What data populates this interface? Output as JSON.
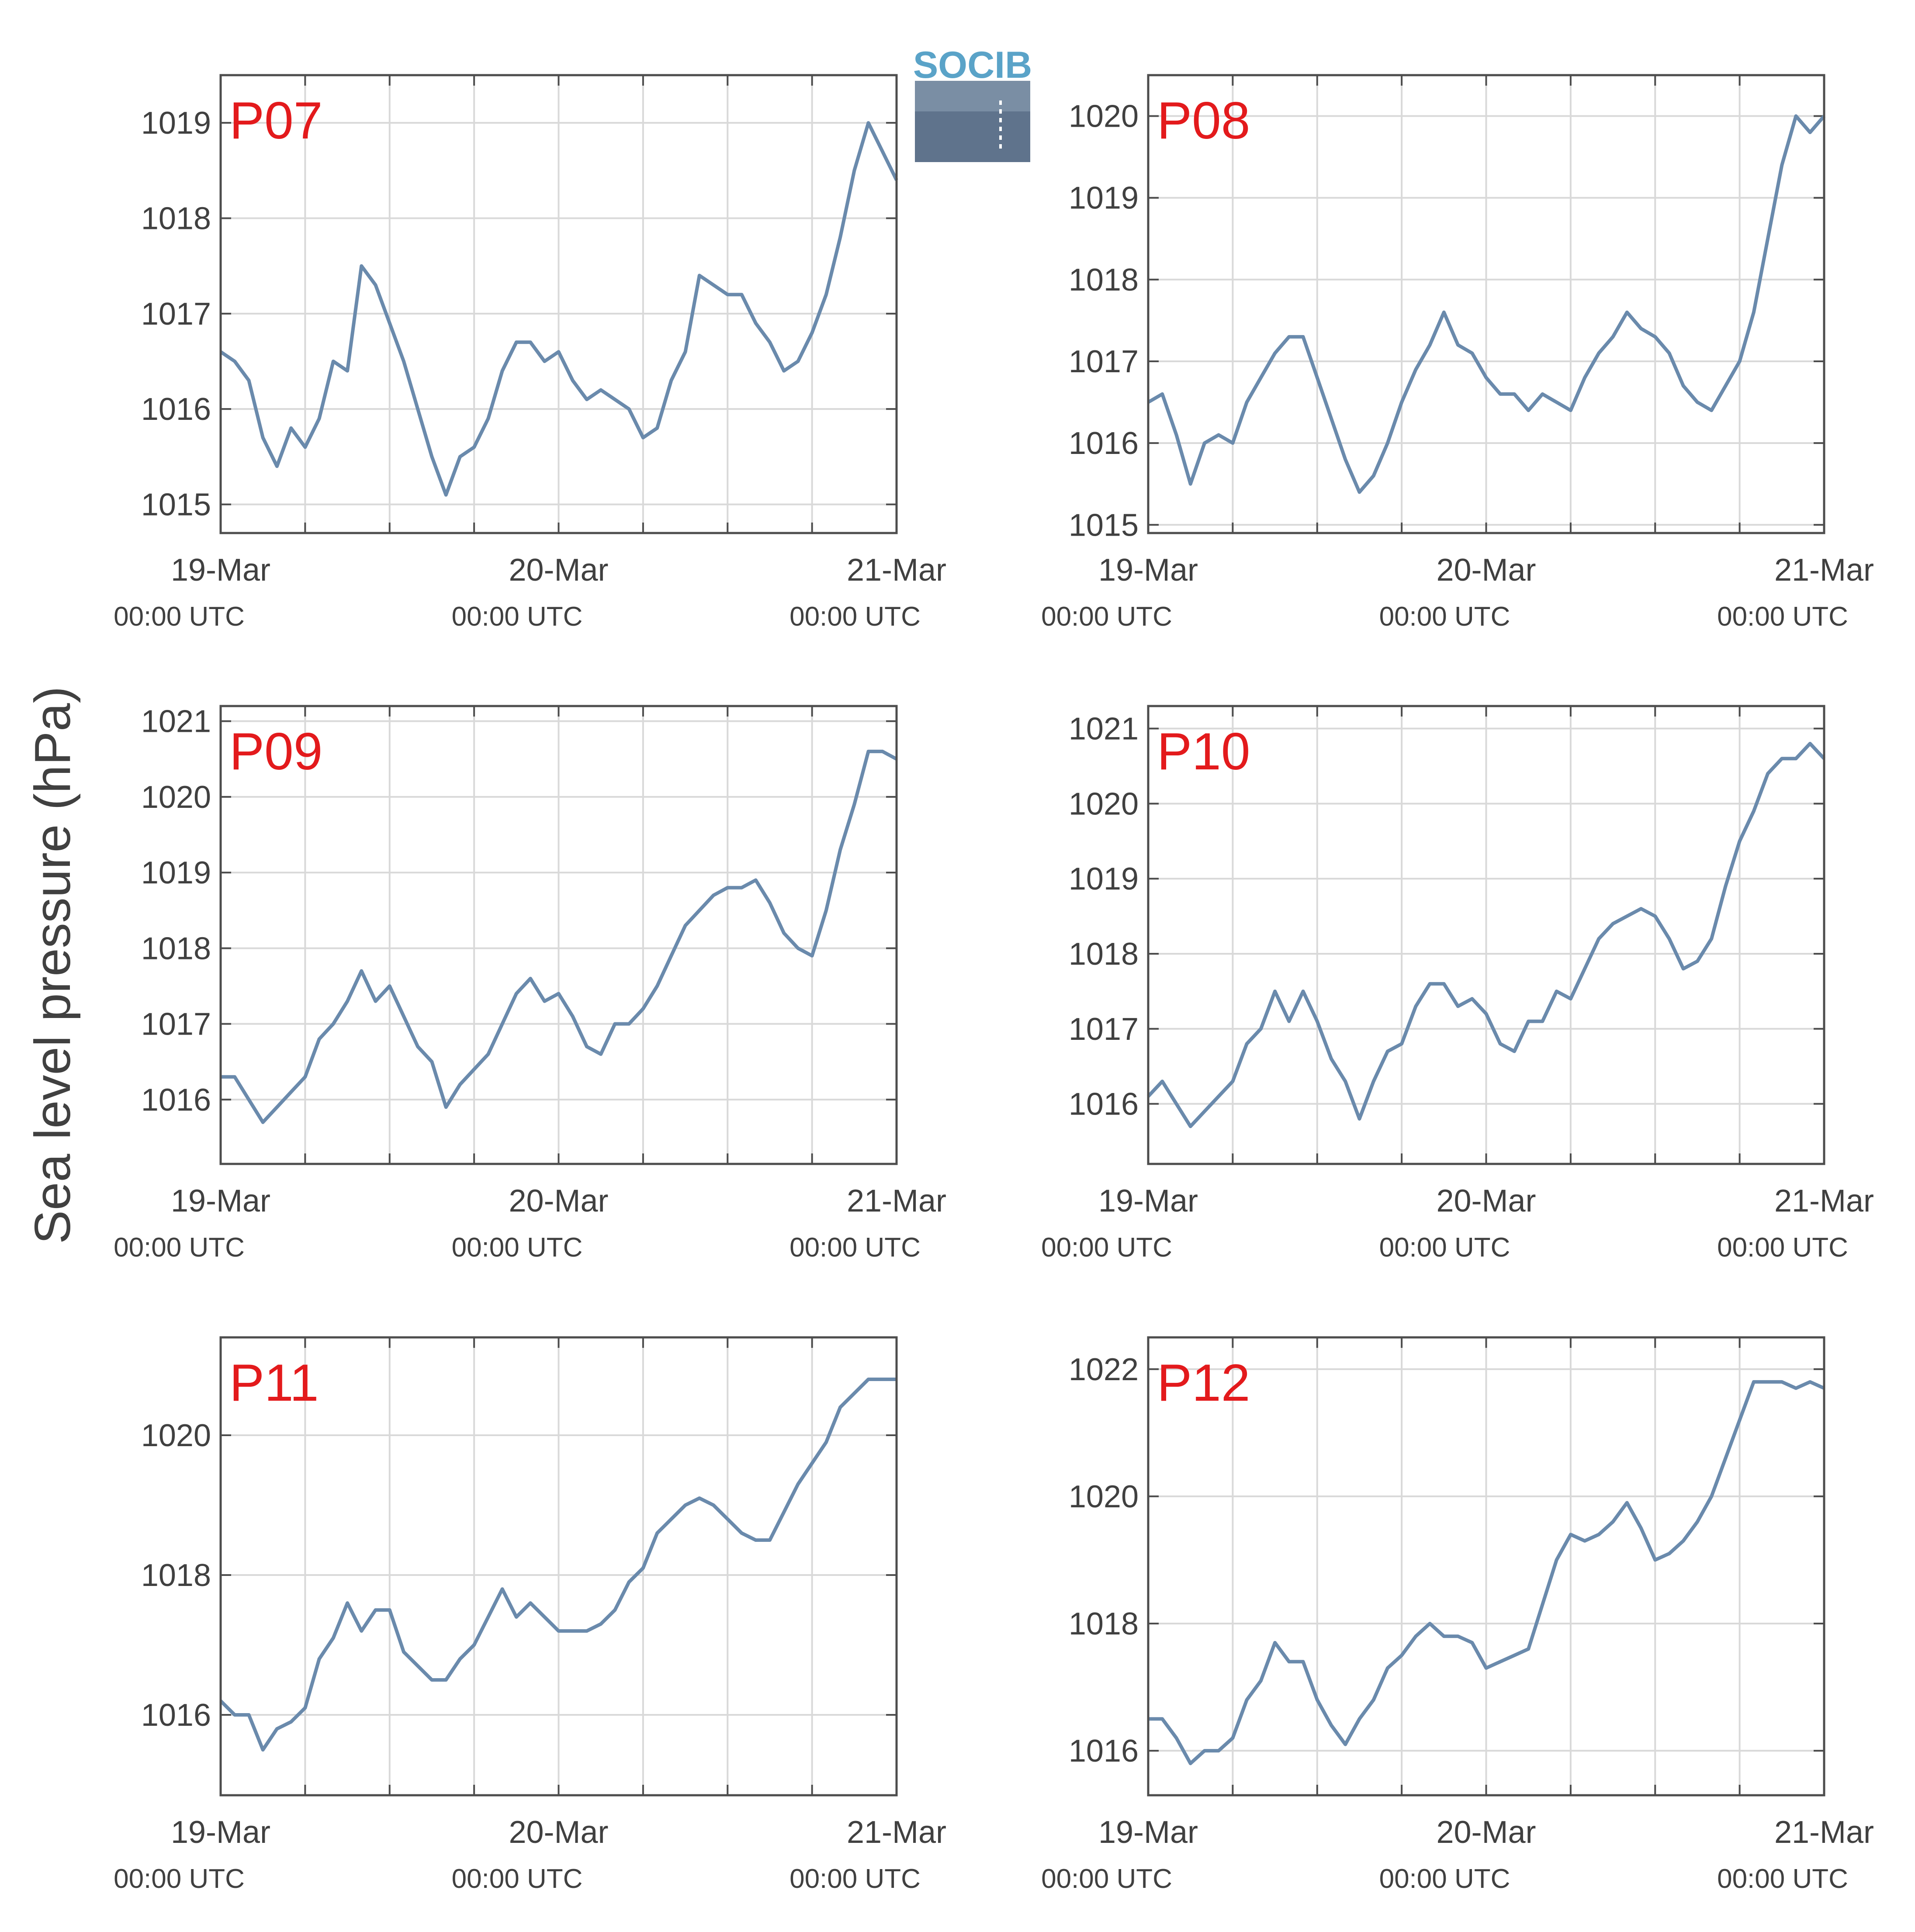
{
  "figure": {
    "ylabel": "Sea level pressure (hPa)",
    "logo_text": "SOCIB",
    "colors": {
      "line": "#6a8aac",
      "panel_label": "#e31a1c",
      "grid": "#d9d9d9",
      "axis": "#4d4d4d",
      "text": "#404040"
    }
  },
  "chart_data": [
    {
      "type": "line",
      "title": "P07",
      "xlabel": "",
      "ylabel": "Sea level pressure (hPa)",
      "x_ticks": [
        {
          "date": "19-Mar",
          "time": "00:00 UTC"
        },
        {
          "date": "20-Mar",
          "time": "00:00 UTC"
        },
        {
          "date": "21-Mar",
          "time": "00:00 UTC"
        }
      ],
      "xlim": [
        "2019-03-19T00:00",
        "2019-03-21T00:00"
      ],
      "ylim": [
        1014.7,
        1019.5
      ],
      "yticks": [
        1015,
        1016,
        1017,
        1018,
        1019
      ],
      "grid": true,
      "series": [
        {
          "x": [
            0,
            1,
            2,
            3,
            4,
            5,
            6,
            7,
            8,
            9,
            10,
            11,
            12,
            13,
            14,
            15,
            16,
            17,
            18,
            19,
            20,
            21,
            22,
            23,
            24,
            25,
            26,
            27,
            28,
            29,
            30,
            31,
            32,
            33,
            34,
            35,
            36,
            37,
            38,
            39,
            40,
            41,
            42,
            43,
            44,
            45,
            46,
            47,
            48
          ],
          "y": [
            1016.6,
            1016.5,
            1016.3,
            1015.7,
            1015.4,
            1015.8,
            1015.6,
            1015.9,
            1016.5,
            1016.4,
            1017.5,
            1017.3,
            1016.9,
            1016.5,
            1016.0,
            1015.5,
            1015.1,
            1015.5,
            1015.6,
            1015.9,
            1016.4,
            1016.7,
            1016.7,
            1016.5,
            1016.6,
            1016.3,
            1016.1,
            1016.2,
            1016.1,
            1016.0,
            1015.7,
            1015.8,
            1016.3,
            1016.6,
            1017.4,
            1017.3,
            1017.2,
            1017.2,
            1016.9,
            1016.7,
            1016.4,
            1016.5,
            1016.8,
            1017.2,
            1017.8,
            1018.5,
            1019.0,
            1018.7,
            1018.4
          ]
        }
      ]
    },
    {
      "type": "line",
      "title": "P08",
      "xlabel": "",
      "ylabel": "Sea level pressure (hPa)",
      "x_ticks": [
        {
          "date": "19-Mar",
          "time": "00:00 UTC"
        },
        {
          "date": "20-Mar",
          "time": "00:00 UTC"
        },
        {
          "date": "21-Mar",
          "time": "00:00 UTC"
        }
      ],
      "xlim": [
        "2019-03-19T00:00",
        "2019-03-21T00:00"
      ],
      "ylim": [
        1014.9,
        1020.5
      ],
      "yticks": [
        1015,
        1016,
        1017,
        1018,
        1019,
        1020
      ],
      "grid": true,
      "series": [
        {
          "x": [
            0,
            1,
            2,
            3,
            4,
            5,
            6,
            7,
            8,
            9,
            10,
            11,
            12,
            13,
            14,
            15,
            16,
            17,
            18,
            19,
            20,
            21,
            22,
            23,
            24,
            25,
            26,
            27,
            28,
            29,
            30,
            31,
            32,
            33,
            34,
            35,
            36,
            37,
            38,
            39,
            40,
            41,
            42,
            43,
            44,
            45,
            46,
            47,
            48
          ],
          "y": [
            1016.5,
            1016.6,
            1016.1,
            1015.5,
            1016.0,
            1016.1,
            1016.0,
            1016.5,
            1016.8,
            1017.1,
            1017.3,
            1017.3,
            1016.8,
            1016.3,
            1015.8,
            1015.4,
            1015.6,
            1016.0,
            1016.5,
            1016.9,
            1017.2,
            1017.6,
            1017.2,
            1017.1,
            1016.8,
            1016.6,
            1016.6,
            1016.4,
            1016.6,
            1016.5,
            1016.4,
            1016.8,
            1017.1,
            1017.3,
            1017.6,
            1017.4,
            1017.3,
            1017.1,
            1016.7,
            1016.5,
            1016.4,
            1016.7,
            1017.0,
            1017.6,
            1018.5,
            1019.4,
            1020.0,
            1019.8,
            1020.0
          ]
        }
      ]
    },
    {
      "type": "line",
      "title": "P09",
      "xlabel": "",
      "ylabel": "Sea level pressure (hPa)",
      "x_ticks": [
        {
          "date": "19-Mar",
          "time": "00:00 UTC"
        },
        {
          "date": "20-Mar",
          "time": "00:00 UTC"
        },
        {
          "date": "21-Mar",
          "time": "00:00 UTC"
        }
      ],
      "xlim": [
        "2019-03-19T00:00",
        "2019-03-21T00:00"
      ],
      "ylim": [
        1015.15,
        1021.2
      ],
      "yticks": [
        1016,
        1017,
        1018,
        1019,
        1020,
        1021
      ],
      "grid": true,
      "series": [
        {
          "x": [
            0,
            1,
            2,
            3,
            4,
            5,
            6,
            7,
            8,
            9,
            10,
            11,
            12,
            13,
            14,
            15,
            16,
            17,
            18,
            19,
            20,
            21,
            22,
            23,
            24,
            25,
            26,
            27,
            28,
            29,
            30,
            31,
            32,
            33,
            34,
            35,
            36,
            37,
            38,
            39,
            40,
            41,
            42,
            43,
            44,
            45,
            46,
            47,
            48
          ],
          "y": [
            1016.3,
            1016.3,
            1016.0,
            1015.7,
            1015.9,
            1016.1,
            1016.3,
            1016.8,
            1017.0,
            1017.3,
            1017.7,
            1017.3,
            1017.5,
            1017.1,
            1016.7,
            1016.5,
            1015.9,
            1016.2,
            1016.4,
            1016.6,
            1017.0,
            1017.4,
            1017.6,
            1017.3,
            1017.4,
            1017.1,
            1016.7,
            1016.6,
            1017.0,
            1017.0,
            1017.2,
            1017.5,
            1017.9,
            1018.3,
            1018.5,
            1018.7,
            1018.8,
            1018.8,
            1018.9,
            1018.6,
            1018.2,
            1018.0,
            1017.9,
            1018.5,
            1019.3,
            1019.9,
            1020.6,
            1020.6,
            1020.5
          ]
        }
      ]
    },
    {
      "type": "line",
      "title": "P10",
      "xlabel": "",
      "ylabel": "Sea level pressure (hPa)",
      "x_ticks": [
        {
          "date": "19-Mar",
          "time": "00:00 UTC"
        },
        {
          "date": "20-Mar",
          "time": "00:00 UTC"
        },
        {
          "date": "21-Mar",
          "time": "00:00 UTC"
        }
      ],
      "xlim": [
        "2019-03-19T00:00",
        "2019-03-21T00:00"
      ],
      "ylim": [
        1015.2,
        1021.3
      ],
      "yticks": [
        1016,
        1017,
        1018,
        1019,
        1020,
        1021
      ],
      "grid": true,
      "series": [
        {
          "x": [
            0,
            1,
            2,
            3,
            4,
            5,
            6,
            7,
            8,
            9,
            10,
            11,
            12,
            13,
            14,
            15,
            16,
            17,
            18,
            19,
            20,
            21,
            22,
            23,
            24,
            25,
            26,
            27,
            28,
            29,
            30,
            31,
            32,
            33,
            34,
            35,
            36,
            37,
            38,
            39,
            40,
            41,
            42,
            43,
            44,
            45,
            46,
            47,
            48
          ],
          "y": [
            1016.1,
            1016.3,
            1016.0,
            1015.7,
            1015.9,
            1016.1,
            1016.3,
            1016.8,
            1017.0,
            1017.5,
            1017.1,
            1017.5,
            1017.1,
            1016.6,
            1016.3,
            1015.8,
            1016.3,
            1016.7,
            1016.8,
            1017.3,
            1017.6,
            1017.6,
            1017.3,
            1017.4,
            1017.2,
            1016.8,
            1016.7,
            1017.1,
            1017.1,
            1017.5,
            1017.4,
            1017.8,
            1018.2,
            1018.4,
            1018.5,
            1018.6,
            1018.5,
            1018.2,
            1017.8,
            1017.9,
            1018.2,
            1018.9,
            1019.5,
            1019.9,
            1020.4,
            1020.6,
            1020.6,
            1020.8,
            1020.6
          ]
        }
      ]
    },
    {
      "type": "line",
      "title": "P11",
      "xlabel": "",
      "ylabel": "Sea level pressure (hPa)",
      "x_ticks": [
        {
          "date": "19-Mar",
          "time": "00:00 UTC"
        },
        {
          "date": "20-Mar",
          "time": "00:00 UTC"
        },
        {
          "date": "21-Mar",
          "time": "00:00 UTC"
        }
      ],
      "xlim": [
        "2019-03-19T00:00",
        "2019-03-21T00:00"
      ],
      "ylim": [
        1014.85,
        1021.4
      ],
      "yticks": [
        1016,
        1018,
        1020
      ],
      "grid": true,
      "series": [
        {
          "x": [
            0,
            1,
            2,
            3,
            4,
            5,
            6,
            7,
            8,
            9,
            10,
            11,
            12,
            13,
            14,
            15,
            16,
            17,
            18,
            19,
            20,
            21,
            22,
            23,
            24,
            25,
            26,
            27,
            28,
            29,
            30,
            31,
            32,
            33,
            34,
            35,
            36,
            37,
            38,
            39,
            40,
            41,
            42,
            43,
            44,
            45,
            46,
            47,
            48
          ],
          "y": [
            1016.2,
            1016.0,
            1016.0,
            1015.5,
            1015.8,
            1015.9,
            1016.1,
            1016.8,
            1017.1,
            1017.6,
            1017.2,
            1017.5,
            1017.5,
            1016.9,
            1016.7,
            1016.5,
            1016.5,
            1016.8,
            1017.0,
            1017.4,
            1017.8,
            1017.4,
            1017.6,
            1017.4,
            1017.2,
            1017.2,
            1017.2,
            1017.3,
            1017.5,
            1017.9,
            1018.1,
            1018.6,
            1018.8,
            1019.0,
            1019.1,
            1019.0,
            1018.8,
            1018.6,
            1018.5,
            1018.5,
            1018.9,
            1019.3,
            1019.6,
            1019.9,
            1020.4,
            1020.6,
            1020.8,
            1020.8,
            1020.8
          ]
        }
      ]
    },
    {
      "type": "line",
      "title": "P12",
      "xlabel": "",
      "ylabel": "Sea level pressure (hPa)",
      "x_ticks": [
        {
          "date": "19-Mar",
          "time": "00:00 UTC"
        },
        {
          "date": "20-Mar",
          "time": "00:00 UTC"
        },
        {
          "date": "21-Mar",
          "time": "00:00 UTC"
        }
      ],
      "xlim": [
        "2019-03-19T00:00",
        "2019-03-21T00:00"
      ],
      "ylim": [
        1015.3,
        1022.5
      ],
      "yticks": [
        1016,
        1018,
        1020,
        1022
      ],
      "grid": true,
      "series": [
        {
          "x": [
            0,
            1,
            2,
            3,
            4,
            5,
            6,
            7,
            8,
            9,
            10,
            11,
            12,
            13,
            14,
            15,
            16,
            17,
            18,
            19,
            20,
            21,
            22,
            23,
            24,
            25,
            26,
            27,
            28,
            29,
            30,
            31,
            32,
            33,
            34,
            35,
            36,
            37,
            38,
            39,
            40,
            41,
            42,
            43,
            44,
            45,
            46,
            47,
            48
          ],
          "y": [
            1016.5,
            1016.5,
            1016.2,
            1015.8,
            1016.0,
            1016.0,
            1016.2,
            1016.8,
            1017.1,
            1017.7,
            1017.4,
            1017.4,
            1016.8,
            1016.4,
            1016.1,
            1016.5,
            1016.8,
            1017.3,
            1017.5,
            1017.8,
            1018.0,
            1017.8,
            1017.8,
            1017.7,
            1017.3,
            1017.4,
            1017.5,
            1017.6,
            1018.3,
            1019.0,
            1019.4,
            1019.3,
            1019.4,
            1019.6,
            1019.9,
            1019.5,
            1019.0,
            1019.1,
            1019.3,
            1019.6,
            1020.0,
            1020.6,
            1021.2,
            1021.8,
            1021.8,
            1021.8,
            1021.7,
            1021.8,
            1021.7
          ]
        }
      ]
    }
  ]
}
